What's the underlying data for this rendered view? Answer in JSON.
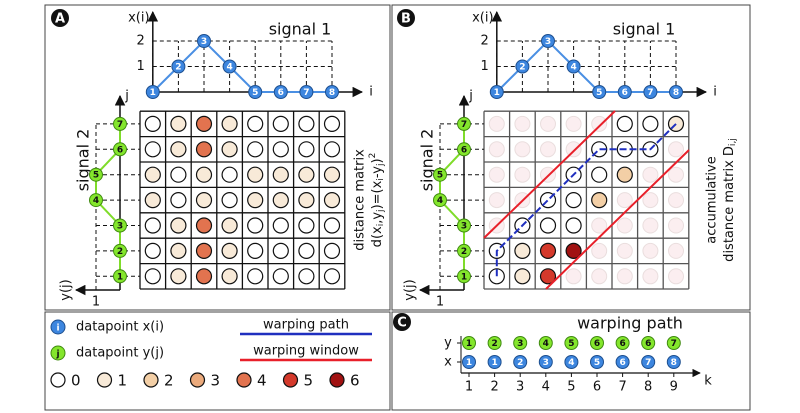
{
  "panel_labels": [
    "A",
    "B",
    "C"
  ],
  "signal_1": {
    "title": "signal 1",
    "axis_label": "x(i)",
    "index_label": "i",
    "yticks": [
      1,
      2
    ],
    "indices": [
      1,
      2,
      3,
      4,
      5,
      6,
      7,
      8
    ],
    "values": [
      0,
      1,
      2,
      1,
      0,
      0,
      0,
      0
    ],
    "color": "#3d86df",
    "line_color": "#4a8fe3"
  },
  "signal_2": {
    "title": "signal 2",
    "axis_label": "y(j)",
    "index_label": "j",
    "xticks": [
      1
    ],
    "indices": [
      1,
      2,
      3,
      4,
      5,
      6,
      7
    ],
    "values": [
      0,
      0,
      0,
      1,
      1,
      0,
      0
    ],
    "color": "#84e62c",
    "line_color": "#7fdc2a"
  },
  "distance_matrix": {
    "caption": "distance matrix",
    "formula": [
      "d(x",
      "i",
      ",y",
      "j",
      ")=(x",
      "i",
      "-y",
      "j",
      ")",
      "2"
    ],
    "rows": [
      [
        0,
        1,
        4,
        1,
        0,
        0,
        0,
        0
      ],
      [
        0,
        1,
        4,
        1,
        0,
        0,
        0,
        0
      ],
      [
        0,
        1,
        4,
        1,
        0,
        0,
        0,
        0
      ],
      [
        1,
        0,
        1,
        0,
        1,
        1,
        1,
        1
      ],
      [
        1,
        0,
        1,
        0,
        1,
        1,
        1,
        1
      ],
      [
        0,
        1,
        4,
        1,
        0,
        0,
        0,
        0
      ],
      [
        0,
        1,
        4,
        1,
        0,
        0,
        0,
        0
      ]
    ]
  },
  "accumulative_matrix": {
    "caption_1": "accumulative",
    "caption_2": "distance matrix D",
    "subscript": "i,j",
    "rows": [
      [
        0,
        1,
        5,
        null,
        null,
        null,
        null,
        null
      ],
      [
        0,
        1,
        5,
        6,
        null,
        null,
        null,
        null
      ],
      [
        null,
        0,
        0,
        0,
        null,
        null,
        null,
        null
      ],
      [
        null,
        null,
        0,
        0,
        2,
        null,
        null,
        null
      ],
      [
        null,
        null,
        null,
        0,
        0,
        2,
        null,
        null
      ],
      [
        null,
        null,
        null,
        null,
        0,
        0,
        0,
        null
      ],
      [
        null,
        null,
        null,
        null,
        null,
        0,
        0,
        1
      ]
    ]
  },
  "legend": {
    "datapoint_x": {
      "symbol": "i",
      "label": "datapoint x(i)"
    },
    "datapoint_y": {
      "symbol": "j",
      "label": "datapoint y(j)"
    },
    "warping_path": {
      "label": "warping path",
      "color": "#1f2fbf"
    },
    "warping_window": {
      "label": "warping window",
      "color": "#e8202a"
    },
    "color_scale": [
      {
        "value": 0,
        "color": "#ffffff"
      },
      {
        "value": 1,
        "color": "#f8ead8"
      },
      {
        "value": 2,
        "color": "#f3cfa6"
      },
      {
        "value": 3,
        "color": "#ebaa7c"
      },
      {
        "value": 4,
        "color": "#e2734f"
      },
      {
        "value": 5,
        "color": "#d4392b"
      },
      {
        "value": 6,
        "color": "#a11212"
      }
    ]
  },
  "warping_path_panel": {
    "title": "warping path",
    "y_label": "y",
    "x_label": "x",
    "k_label": "k",
    "k": [
      1,
      2,
      3,
      4,
      5,
      6,
      7,
      8,
      9
    ],
    "y": [
      1,
      2,
      3,
      4,
      5,
      6,
      6,
      6,
      7
    ],
    "x": [
      1,
      1,
      2,
      3,
      4,
      5,
      6,
      7,
      8
    ]
  }
}
